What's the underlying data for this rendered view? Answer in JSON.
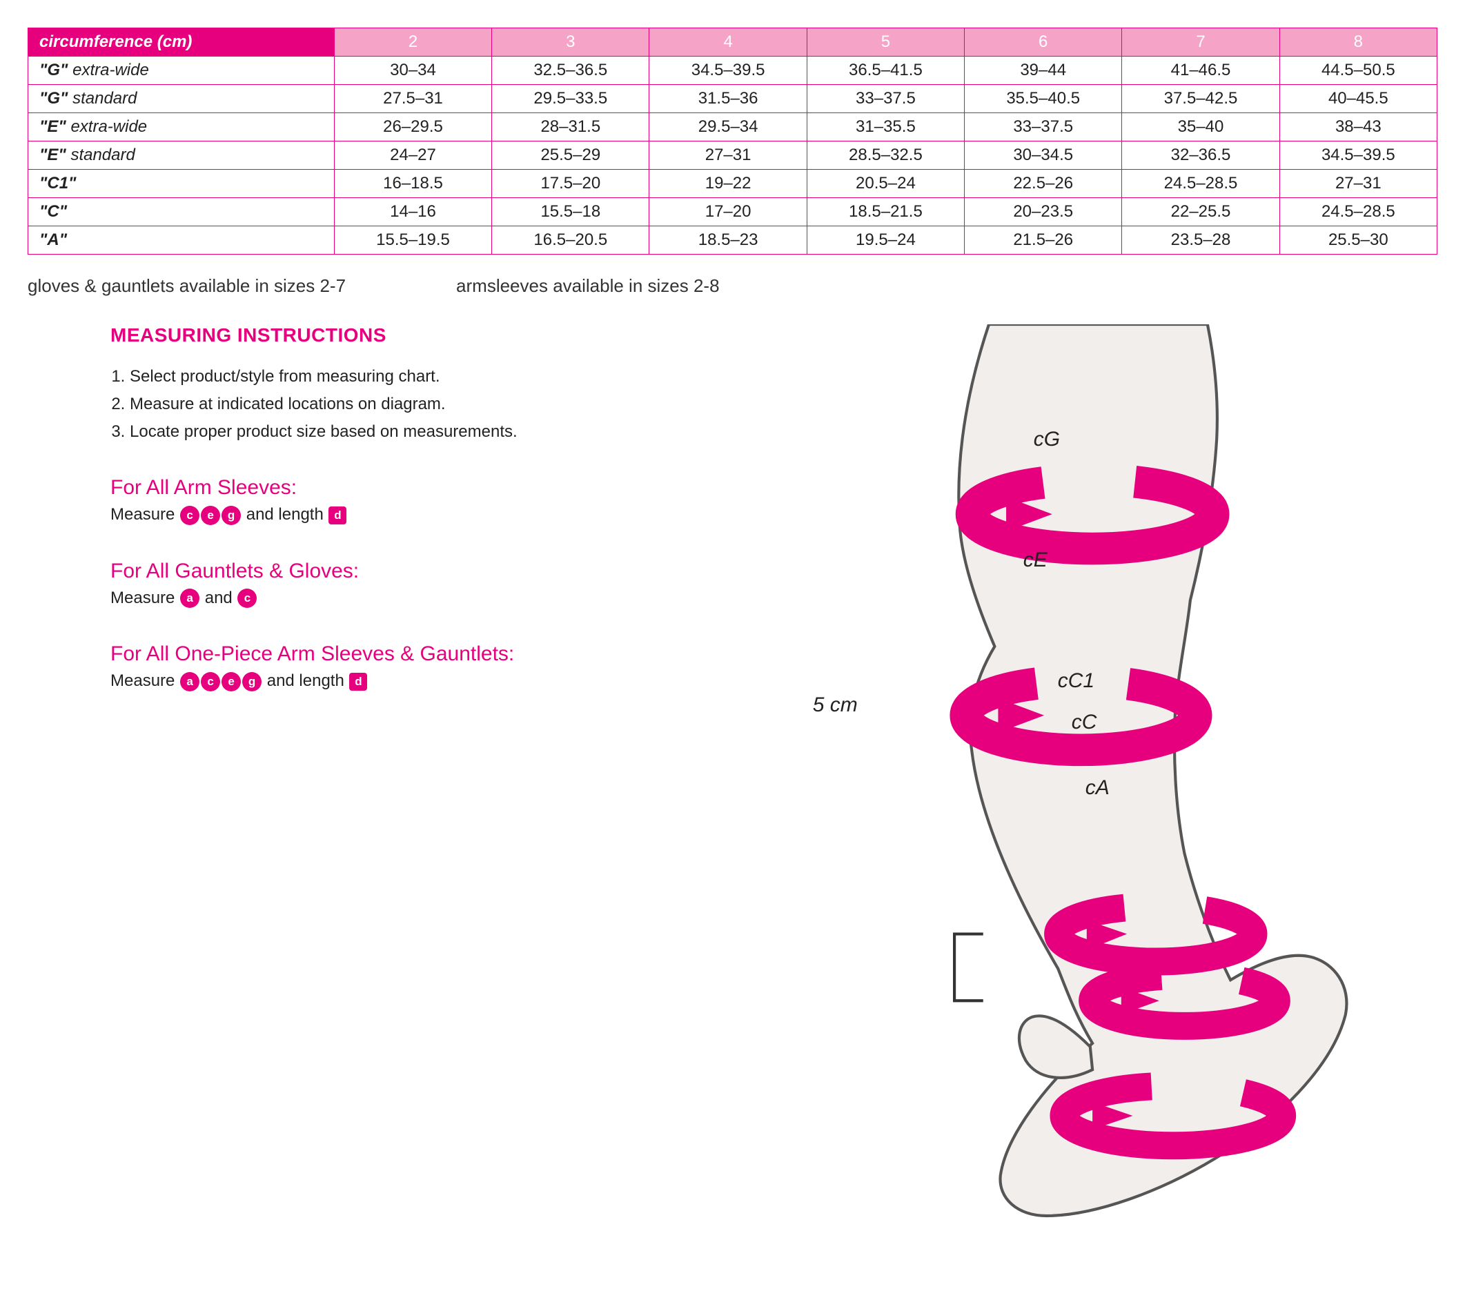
{
  "colors": {
    "accent": "#e6007e",
    "accent_light": "#f5a3c7",
    "text": "#222222",
    "arm_fill": "#f1eeeb",
    "arm_stroke": "#444444",
    "bg": "#ffffff"
  },
  "table": {
    "corner_label": "circumference (cm)",
    "size_columns": [
      "2",
      "3",
      "4",
      "5",
      "6",
      "7",
      "8"
    ],
    "rows": [
      {
        "label_quoted": "\"G\"",
        "label_variant": "extra-wide",
        "cells": [
          "30–34",
          "32.5–36.5",
          "34.5–39.5",
          "36.5–41.5",
          "39–44",
          "41–46.5",
          "44.5–50.5"
        ]
      },
      {
        "label_quoted": "\"G\"",
        "label_variant": "standard",
        "cells": [
          "27.5–31",
          "29.5–33.5",
          "31.5–36",
          "33–37.5",
          "35.5–40.5",
          "37.5–42.5",
          "40–45.5"
        ]
      },
      {
        "label_quoted": "\"E\"",
        "label_variant": "extra-wide",
        "cells": [
          "26–29.5",
          "28–31.5",
          "29.5–34",
          "31–35.5",
          "33–37.5",
          "35–40",
          "38–43"
        ]
      },
      {
        "label_quoted": "\"E\"",
        "label_variant": "standard",
        "cells": [
          "24–27",
          "25.5–29",
          "27–31",
          "28.5–32.5",
          "30–34.5",
          "32–36.5",
          "34.5–39.5"
        ]
      },
      {
        "label_quoted": "\"C1\"",
        "label_variant": "",
        "cells": [
          "16–18.5",
          "17.5–20",
          "19–22",
          "20.5–24",
          "22.5–26",
          "24.5–28.5",
          "27–31"
        ]
      },
      {
        "label_quoted": "\"C\"",
        "label_variant": "",
        "cells": [
          "14–16",
          "15.5–18",
          "17–20",
          "18.5–21.5",
          "20–23.5",
          "22–25.5",
          "24.5–28.5"
        ]
      },
      {
        "label_quoted": "\"A\"",
        "label_variant": "",
        "cells": [
          "15.5–19.5",
          "16.5–20.5",
          "18.5–23",
          "19.5–24",
          "21.5–26",
          "23.5–28",
          "25.5–30"
        ]
      }
    ]
  },
  "availability": {
    "gloves": "gloves & gauntlets available in sizes 2-7",
    "armsleeves": "armsleeves available in sizes 2-8"
  },
  "instructions": {
    "heading": "MEASURING INSTRUCTIONS",
    "steps": [
      "Select product/style from measuring chart.",
      "Measure at indicated locations on diagram.",
      "Locate proper product size based on measurements."
    ],
    "sections": [
      {
        "title": "For All Arm Sleeves:",
        "prefix": "Measure ",
        "badges": [
          "c",
          "e",
          "g"
        ],
        "mid": " and length ",
        "badges2": [
          "d"
        ],
        "badge2_shape": "square"
      },
      {
        "title": "For All Gauntlets & Gloves:",
        "prefix": "Measure ",
        "badges": [
          "a"
        ],
        "mid": " and ",
        "badges2": [
          "c"
        ],
        "badge2_shape": "circle"
      },
      {
        "title": "For All One-Piece Arm Sleeves & Gauntlets:",
        "prefix": "Measure ",
        "badges": [
          "a",
          "c",
          "e",
          "g"
        ],
        "mid": " and length ",
        "badges2": [
          "d"
        ],
        "badge2_shape": "square"
      }
    ]
  },
  "diagram": {
    "labels": {
      "cG": "cG",
      "cE": "cE",
      "cC1": "cC1",
      "cC": "cC",
      "cA": "cA",
      "dist": "5 cm"
    }
  }
}
